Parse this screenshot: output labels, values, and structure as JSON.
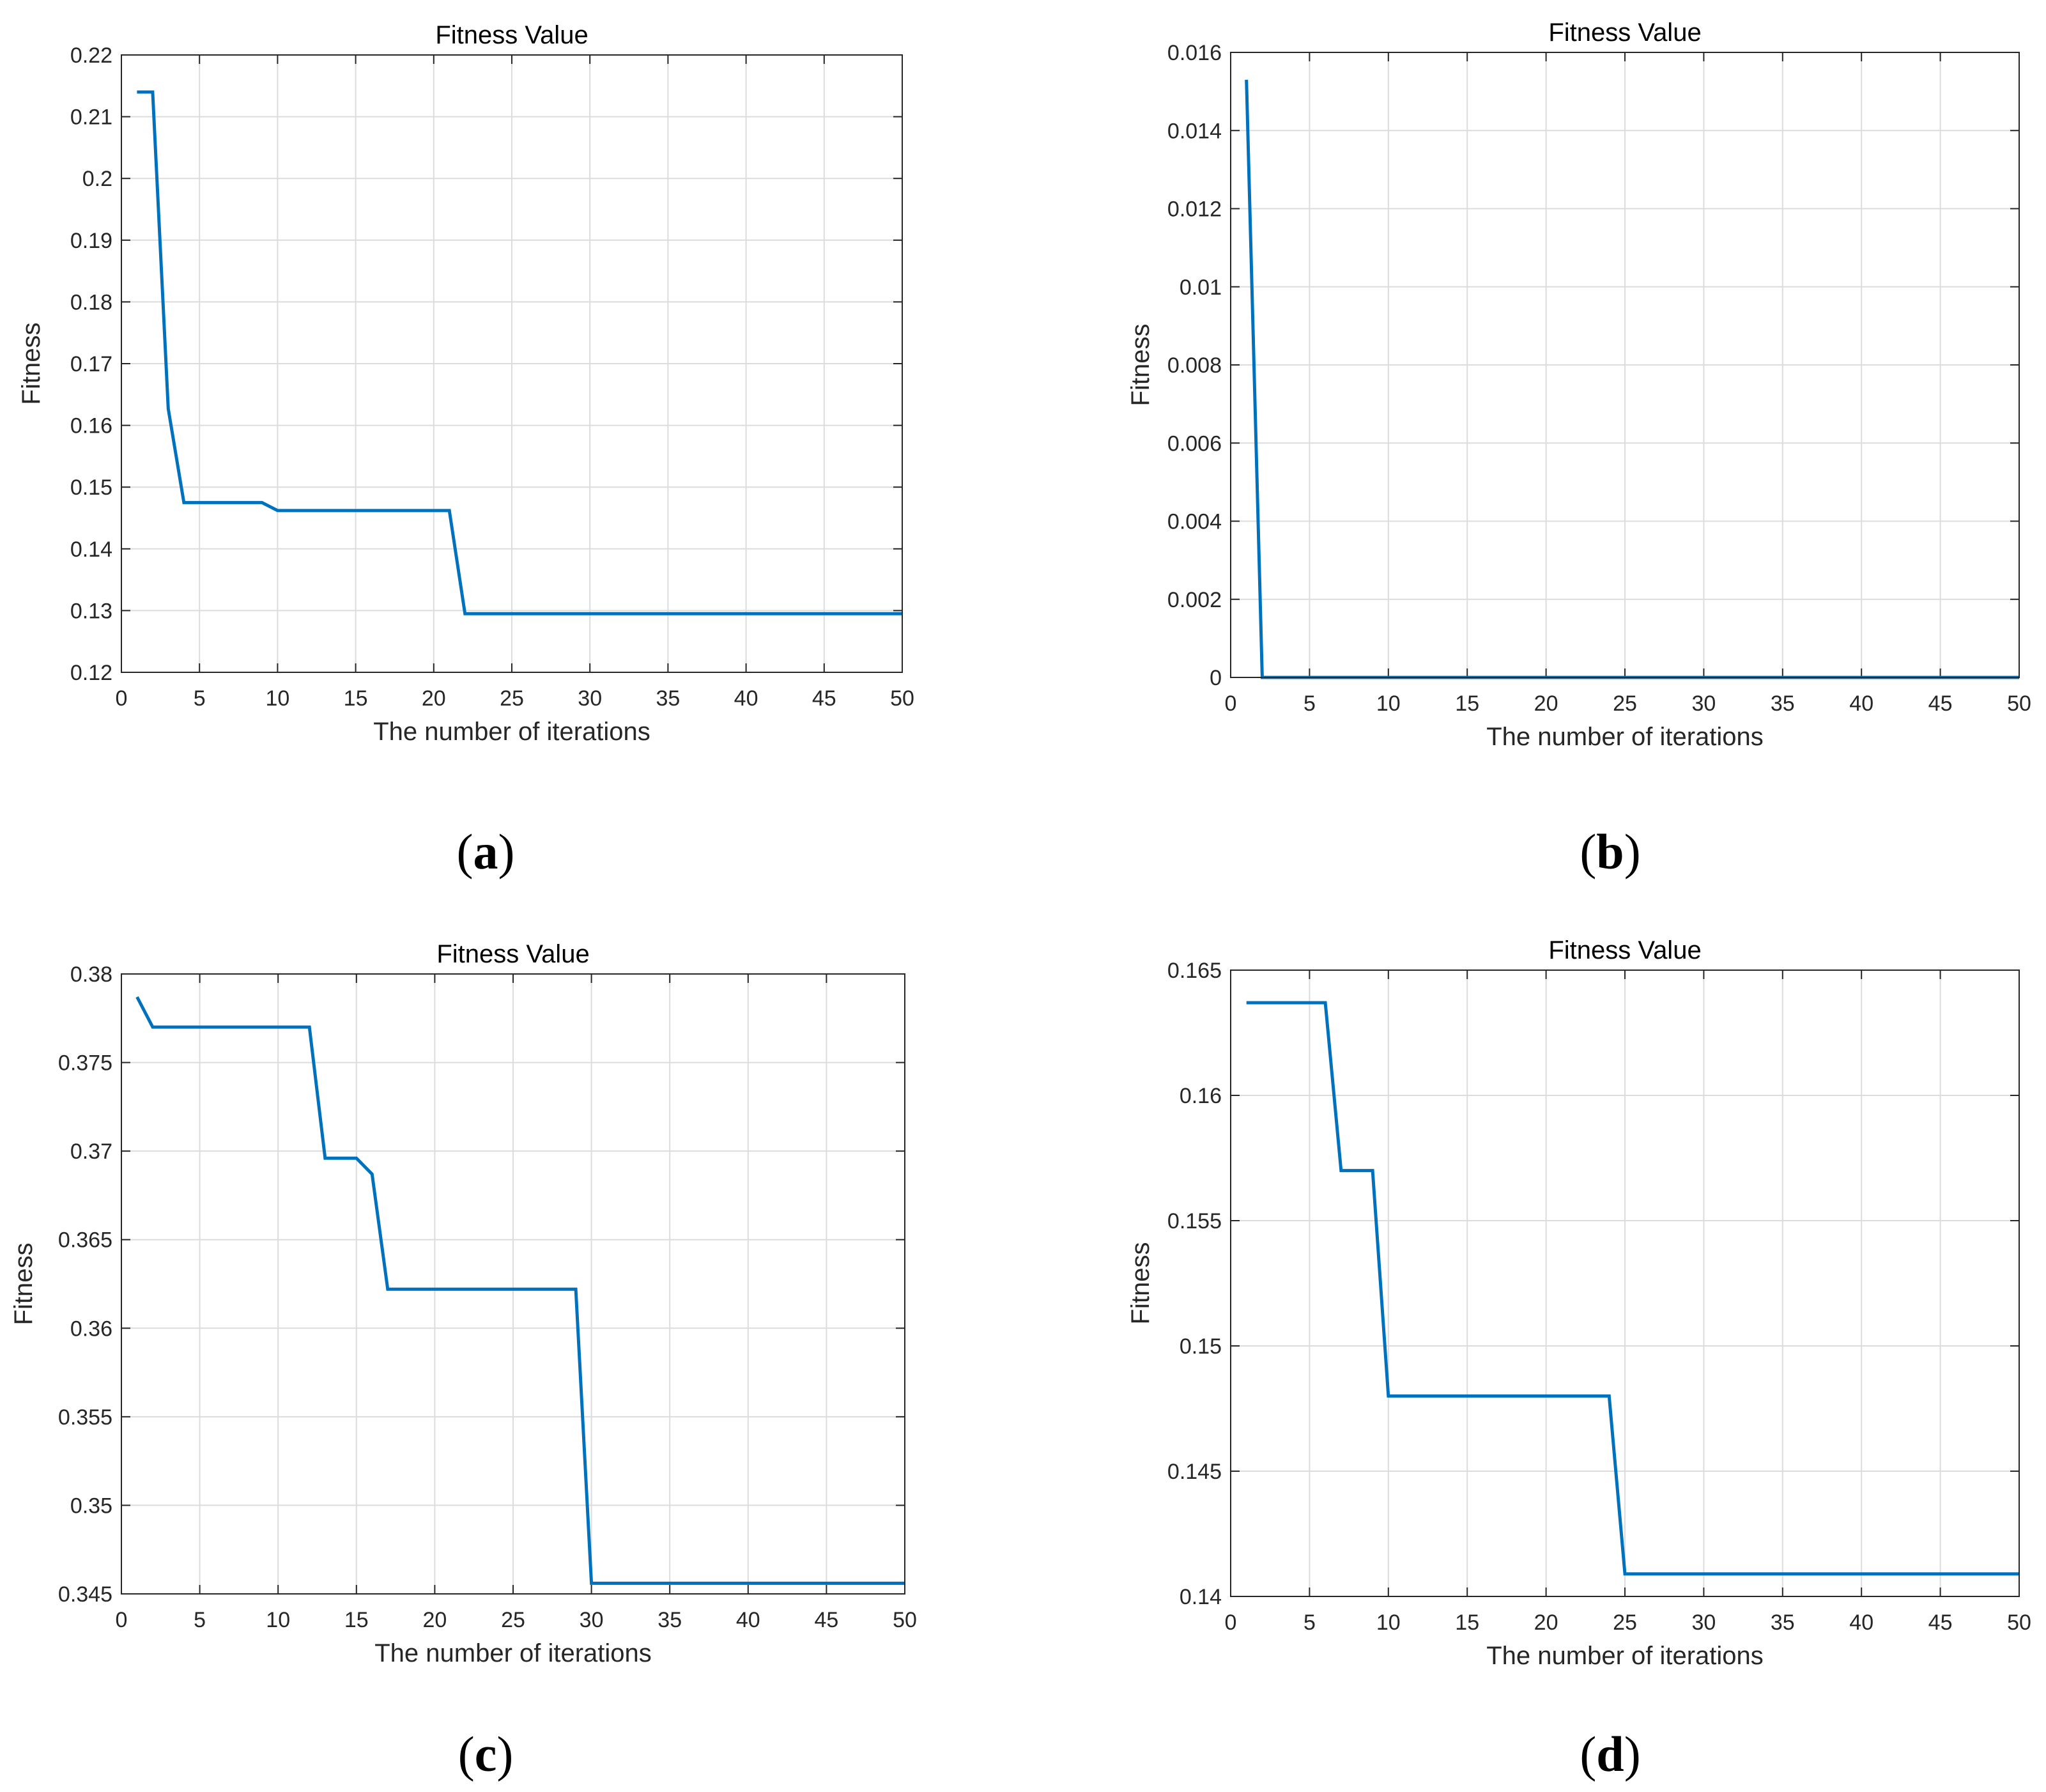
{
  "figure": {
    "panels": [
      {
        "id": "a",
        "letter": "a"
      },
      {
        "id": "b",
        "letter": "b"
      },
      {
        "id": "c",
        "letter": "c"
      },
      {
        "id": "d",
        "letter": "d"
      }
    ]
  },
  "chart_data": [
    {
      "panel": "a",
      "type": "line",
      "title": "Fitness Value",
      "xlabel": "The number of iterations",
      "ylabel": "Fitness",
      "xlim": [
        0,
        50
      ],
      "ylim": [
        0.12,
        0.22
      ],
      "xticks": [
        0,
        5,
        10,
        15,
        20,
        25,
        30,
        35,
        40,
        45,
        50
      ],
      "xtick_labels": [
        "0",
        "5",
        "10",
        "15",
        "20",
        "25",
        "30",
        "35",
        "40",
        "45",
        "50"
      ],
      "yticks": [
        0.12,
        0.13,
        0.14,
        0.15,
        0.16,
        0.17,
        0.18,
        0.19,
        0.2,
        0.21,
        0.22
      ],
      "ytick_labels": [
        "0.12",
        "0.13",
        "0.14",
        "0.15",
        "0.16",
        "0.17",
        "0.18",
        "0.19",
        "0.2",
        "0.21",
        "0.22"
      ],
      "grid": true,
      "line_color": "#0072BD",
      "series": [
        {
          "name": "Fitness",
          "x": [
            1,
            2,
            3,
            4,
            5,
            6,
            7,
            8,
            9,
            10,
            11,
            12,
            13,
            14,
            15,
            16,
            17,
            18,
            19,
            20,
            21,
            22,
            23,
            24,
            25,
            26,
            27,
            28,
            29,
            30,
            31,
            32,
            33,
            34,
            35,
            36,
            37,
            38,
            39,
            40,
            41,
            42,
            43,
            44,
            45,
            46,
            47,
            48,
            49,
            50
          ],
          "values": [
            0.214,
            0.214,
            0.1627,
            0.1475,
            0.1475,
            0.1475,
            0.1475,
            0.1475,
            0.1475,
            0.1462,
            0.1462,
            0.1462,
            0.1462,
            0.1462,
            0.1462,
            0.1462,
            0.1462,
            0.1462,
            0.1462,
            0.1462,
            0.1462,
            0.1295,
            0.1295,
            0.1295,
            0.1295,
            0.1295,
            0.1295,
            0.1295,
            0.1295,
            0.1295,
            0.1295,
            0.1295,
            0.1295,
            0.1295,
            0.1295,
            0.1295,
            0.1295,
            0.1295,
            0.1295,
            0.1295,
            0.1295,
            0.1295,
            0.1295,
            0.1295,
            0.1295,
            0.1295,
            0.1295,
            0.1295,
            0.1295,
            0.1295
          ]
        }
      ]
    },
    {
      "panel": "b",
      "type": "line",
      "title": "Fitness Value",
      "xlabel": "The number of iterations",
      "ylabel": "Fitness",
      "xlim": [
        0,
        50
      ],
      "ylim": [
        0,
        0.016
      ],
      "xticks": [
        0,
        5,
        10,
        15,
        20,
        25,
        30,
        35,
        40,
        45,
        50
      ],
      "xtick_labels": [
        "0",
        "5",
        "10",
        "15",
        "20",
        "25",
        "30",
        "35",
        "40",
        "45",
        "50"
      ],
      "yticks": [
        0,
        0.002,
        0.004,
        0.006,
        0.008,
        0.01,
        0.012,
        0.014,
        0.016
      ],
      "ytick_labels": [
        "0",
        "0.002",
        "0.004",
        "0.006",
        "0.008",
        "0.01",
        "0.012",
        "0.014",
        "0.016"
      ],
      "grid": true,
      "line_color": "#0072BD",
      "series": [
        {
          "name": "Fitness",
          "x": [
            1,
            2,
            3,
            4,
            5,
            6,
            7,
            8,
            9,
            10,
            11,
            12,
            13,
            14,
            15,
            16,
            17,
            18,
            19,
            20,
            21,
            22,
            23,
            24,
            25,
            26,
            27,
            28,
            29,
            30,
            31,
            32,
            33,
            34,
            35,
            36,
            37,
            38,
            39,
            40,
            41,
            42,
            43,
            44,
            45,
            46,
            47,
            48,
            49,
            50
          ],
          "values": [
            0.0153,
            0,
            0,
            0,
            0,
            0,
            0,
            0,
            0,
            0,
            0,
            0,
            0,
            0,
            0,
            0,
            0,
            0,
            0,
            0,
            0,
            0,
            0,
            0,
            0,
            0,
            0,
            0,
            0,
            0,
            0,
            0,
            0,
            0,
            0,
            0,
            0,
            0,
            0,
            0,
            0,
            0,
            0,
            0,
            0,
            0,
            0,
            0,
            0,
            0
          ]
        }
      ]
    },
    {
      "panel": "c",
      "type": "line",
      "title": "Fitness Value",
      "xlabel": "The number of iterations",
      "ylabel": "Fitness",
      "xlim": [
        0,
        50
      ],
      "ylim": [
        0.345,
        0.38
      ],
      "xticks": [
        0,
        5,
        10,
        15,
        20,
        25,
        30,
        35,
        40,
        45,
        50
      ],
      "xtick_labels": [
        "0",
        "5",
        "10",
        "15",
        "20",
        "25",
        "30",
        "35",
        "40",
        "45",
        "50"
      ],
      "yticks": [
        0.345,
        0.35,
        0.355,
        0.36,
        0.365,
        0.37,
        0.375,
        0.38
      ],
      "ytick_labels": [
        "0.345",
        "0.35",
        "0.355",
        "0.36",
        "0.365",
        "0.37",
        "0.375",
        "0.38"
      ],
      "grid": true,
      "line_color": "#0072BD",
      "series": [
        {
          "name": "Fitness",
          "x": [
            1,
            2,
            3,
            4,
            5,
            6,
            7,
            8,
            9,
            10,
            11,
            12,
            13,
            14,
            15,
            16,
            17,
            18,
            19,
            20,
            21,
            22,
            23,
            24,
            25,
            26,
            27,
            28,
            29,
            30,
            31,
            32,
            33,
            34,
            35,
            36,
            37,
            38,
            39,
            40,
            41,
            42,
            43,
            44,
            45,
            46,
            47,
            48,
            49,
            50
          ],
          "values": [
            0.3787,
            0.377,
            0.377,
            0.377,
            0.377,
            0.377,
            0.377,
            0.377,
            0.377,
            0.377,
            0.377,
            0.377,
            0.3696,
            0.3696,
            0.3696,
            0.3687,
            0.3622,
            0.3622,
            0.3622,
            0.3622,
            0.3622,
            0.3622,
            0.3622,
            0.3622,
            0.3622,
            0.3622,
            0.3622,
            0.3622,
            0.3622,
            0.3456,
            0.3456,
            0.3456,
            0.3456,
            0.3456,
            0.3456,
            0.3456,
            0.3456,
            0.3456,
            0.3456,
            0.3456,
            0.3456,
            0.3456,
            0.3456,
            0.3456,
            0.3456,
            0.3456,
            0.3456,
            0.3456,
            0.3456,
            0.3456
          ]
        }
      ]
    },
    {
      "panel": "d",
      "type": "line",
      "title": "Fitness Value",
      "xlabel": "The number of iterations",
      "ylabel": "Fitness",
      "xlim": [
        0,
        50
      ],
      "ylim": [
        0.14,
        0.165
      ],
      "xticks": [
        0,
        5,
        10,
        15,
        20,
        25,
        30,
        35,
        40,
        45,
        50
      ],
      "xtick_labels": [
        "0",
        "5",
        "10",
        "15",
        "20",
        "25",
        "30",
        "35",
        "40",
        "45",
        "50"
      ],
      "yticks": [
        0.14,
        0.145,
        0.15,
        0.155,
        0.16,
        0.165
      ],
      "ytick_labels": [
        "0.14",
        "0.145",
        "0.15",
        "0.155",
        "0.16",
        "0.165"
      ],
      "grid": true,
      "line_color": "#0072BD",
      "series": [
        {
          "name": "Fitness",
          "x": [
            1,
            2,
            3,
            4,
            5,
            6,
            7,
            8,
            9,
            10,
            11,
            12,
            13,
            14,
            15,
            16,
            17,
            18,
            19,
            20,
            21,
            22,
            23,
            24,
            25,
            26,
            27,
            28,
            29,
            30,
            31,
            32,
            33,
            34,
            35,
            36,
            37,
            38,
            39,
            40,
            41,
            42,
            43,
            44,
            45,
            46,
            47,
            48,
            49,
            50
          ],
          "values": [
            0.1637,
            0.1637,
            0.1637,
            0.1637,
            0.1637,
            0.1637,
            0.157,
            0.157,
            0.157,
            0.148,
            0.148,
            0.148,
            0.148,
            0.148,
            0.148,
            0.148,
            0.148,
            0.148,
            0.148,
            0.148,
            0.148,
            0.148,
            0.148,
            0.148,
            0.1409,
            0.1409,
            0.1409,
            0.1409,
            0.1409,
            0.1409,
            0.1409,
            0.1409,
            0.1409,
            0.1409,
            0.1409,
            0.1409,
            0.1409,
            0.1409,
            0.1409,
            0.1409,
            0.1409,
            0.1409,
            0.1409,
            0.1409,
            0.1409,
            0.1409,
            0.1409,
            0.1409,
            0.1409,
            0.1409
          ]
        }
      ]
    }
  ]
}
